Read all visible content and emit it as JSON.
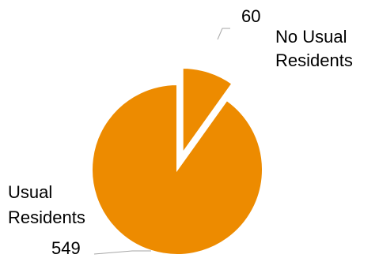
{
  "chart_data": {
    "type": "pie",
    "title": "",
    "slices": [
      {
        "label": "No Usual Residents",
        "label_lines": [
          "No Usual",
          "Residents"
        ],
        "value": 60,
        "value_text": "60",
        "color": "#ED8B00",
        "exploded": true
      },
      {
        "label": "Usual Residents",
        "label_lines": [
          "Usual",
          "Residents"
        ],
        "value": 549,
        "value_text": "549",
        "color": "#ED8B00",
        "exploded": false
      }
    ],
    "legend": "none",
    "start_angle_deg": 0
  }
}
